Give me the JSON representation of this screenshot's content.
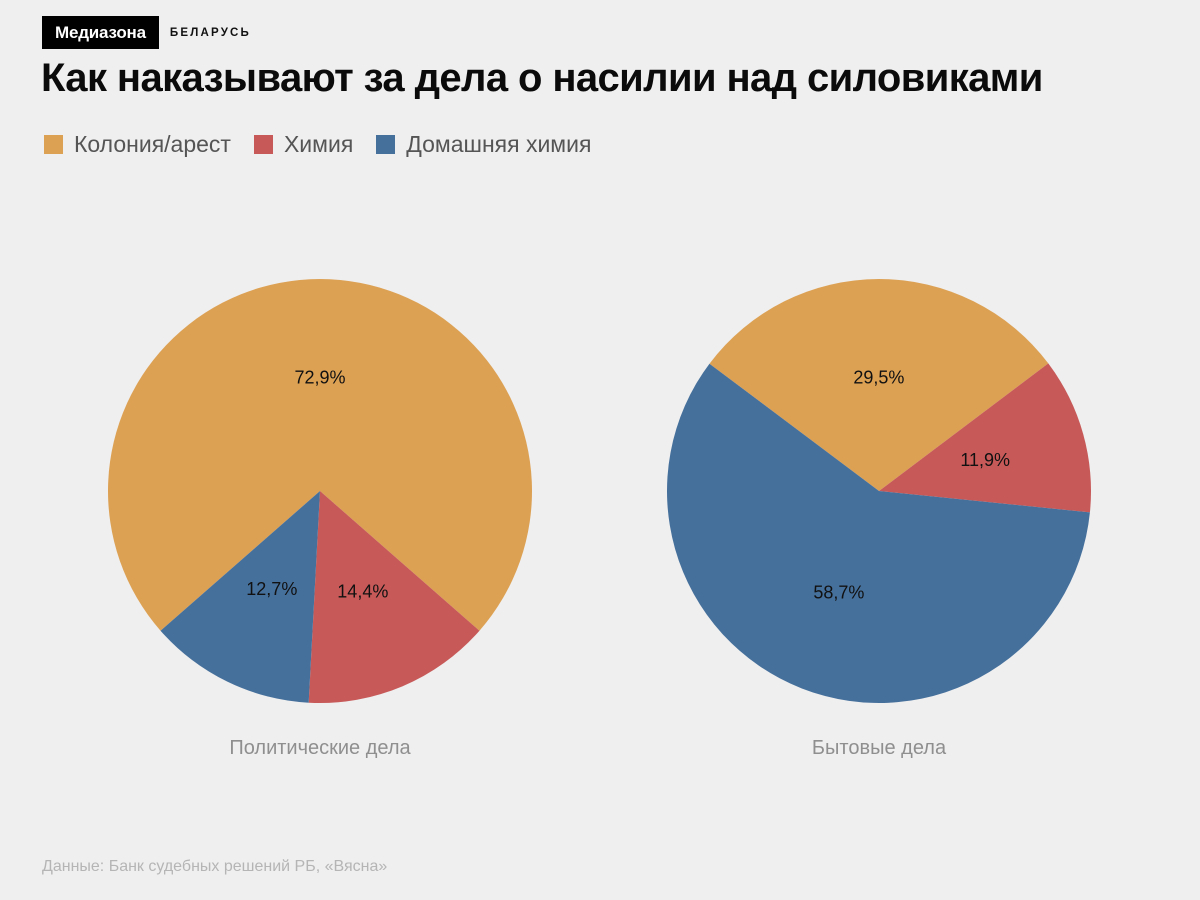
{
  "header": {
    "brand": "Медиазона",
    "region": "БЕЛАРУСЬ"
  },
  "title": "Как наказывают за дела о насилии над силовиками",
  "legend": [
    {
      "label": "Колония/арест",
      "color": "#dda154"
    },
    {
      "label": "Химия",
      "color": "#c75a59"
    },
    {
      "label": "Домашняя химия",
      "color": "#46709c"
    }
  ],
  "chart_data": [
    {
      "type": "pie",
      "title": "Политические дела",
      "series": [
        {
          "name": "Колония/арест",
          "value": 72.9,
          "label": "72,9%",
          "color": "#dda154"
        },
        {
          "name": "Химия",
          "value": 14.4,
          "label": "14,4%",
          "color": "#c75a59"
        },
        {
          "name": "Домашняя химия",
          "value": 12.7,
          "label": "12,7%",
          "color": "#46709c"
        }
      ],
      "legend_position": "top-left"
    },
    {
      "type": "pie",
      "title": "Бытовые дела",
      "series": [
        {
          "name": "Колония/арест",
          "value": 29.5,
          "label": "29,5%",
          "color": "#dda154"
        },
        {
          "name": "Химия",
          "value": 11.9,
          "label": "11,9%",
          "color": "#c75a59"
        },
        {
          "name": "Домашняя химия",
          "value": 58.7,
          "label": "58,7%",
          "color": "#46709c"
        }
      ],
      "legend_position": "top-left"
    }
  ],
  "source": "Данные: Банк судебных решений РБ, «Вясна»"
}
